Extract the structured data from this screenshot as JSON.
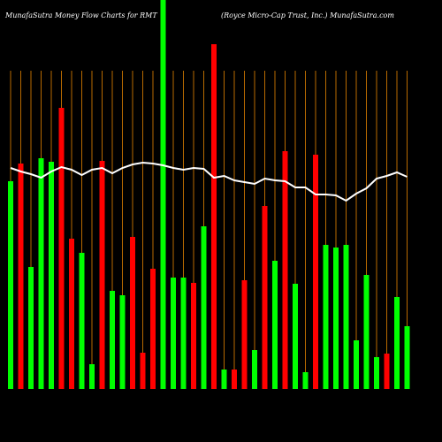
{
  "chart_data": {
    "type": "bar",
    "title": "MunafaSutra  Money Flow  Charts for RMT",
    "subtitle": "(Royce   Micro-Cap Trust,  Inc.) MunafaSutra.com",
    "categories": [
      null,
      null,
      null,
      null,
      null,
      null,
      null,
      null,
      null,
      null,
      null,
      null,
      null,
      null,
      null,
      null,
      null,
      null,
      null,
      null,
      null,
      null,
      null,
      null,
      null,
      null,
      null,
      null,
      null,
      null,
      null,
      null,
      null,
      null,
      null,
      null,
      null,
      null,
      null,
      null
    ],
    "values": [
      235,
      255,
      138,
      261,
      257,
      318,
      170,
      154,
      28,
      258,
      111,
      106,
      172,
      41,
      136,
      440,
      126,
      126,
      120,
      184,
      390,
      22,
      22,
      123,
      44,
      207,
      145,
      269,
      119,
      19,
      265,
      163,
      160,
      163,
      55,
      129,
      36,
      40,
      104,
      71
    ],
    "bar_colors": [
      "#00ff00",
      "#ff0000",
      "#00ff00",
      "#00ff00",
      "#00ff00",
      "#ff0000",
      "#ff0000",
      "#00ff00",
      "#00ff00",
      "#ff0000",
      "#00ff00",
      "#00ff00",
      "#ff0000",
      "#ff0000",
      "#ff0000",
      "#00ff00",
      "#00ff00",
      "#00ff00",
      "#ff0000",
      "#00ff00",
      "#ff0000",
      "#00ff00",
      "#ff0000",
      "#ff0000",
      "#00ff00",
      "#ff0000",
      "#00ff00",
      "#ff0000",
      "#00ff00",
      "#00ff00",
      "#ff0000",
      "#00ff00",
      "#00ff00",
      "#00ff00",
      "#00ff00",
      "#00ff00",
      "#00ff00",
      "#ff0000",
      "#00ff00",
      "#00ff00"
    ],
    "line": {
      "color": "#ffffff",
      "values": [
        250,
        246,
        243,
        239,
        246,
        251,
        248,
        242,
        248,
        250,
        244,
        250,
        254,
        256,
        255,
        253,
        250,
        248,
        250,
        249,
        239,
        241,
        236,
        234,
        232,
        238,
        236,
        235,
        228,
        228,
        220,
        220,
        219,
        213,
        221,
        227,
        238,
        241,
        245,
        240
      ]
    },
    "ylim": [
      0,
      440
    ],
    "grid": true,
    "grid_color": "#b86a00"
  }
}
